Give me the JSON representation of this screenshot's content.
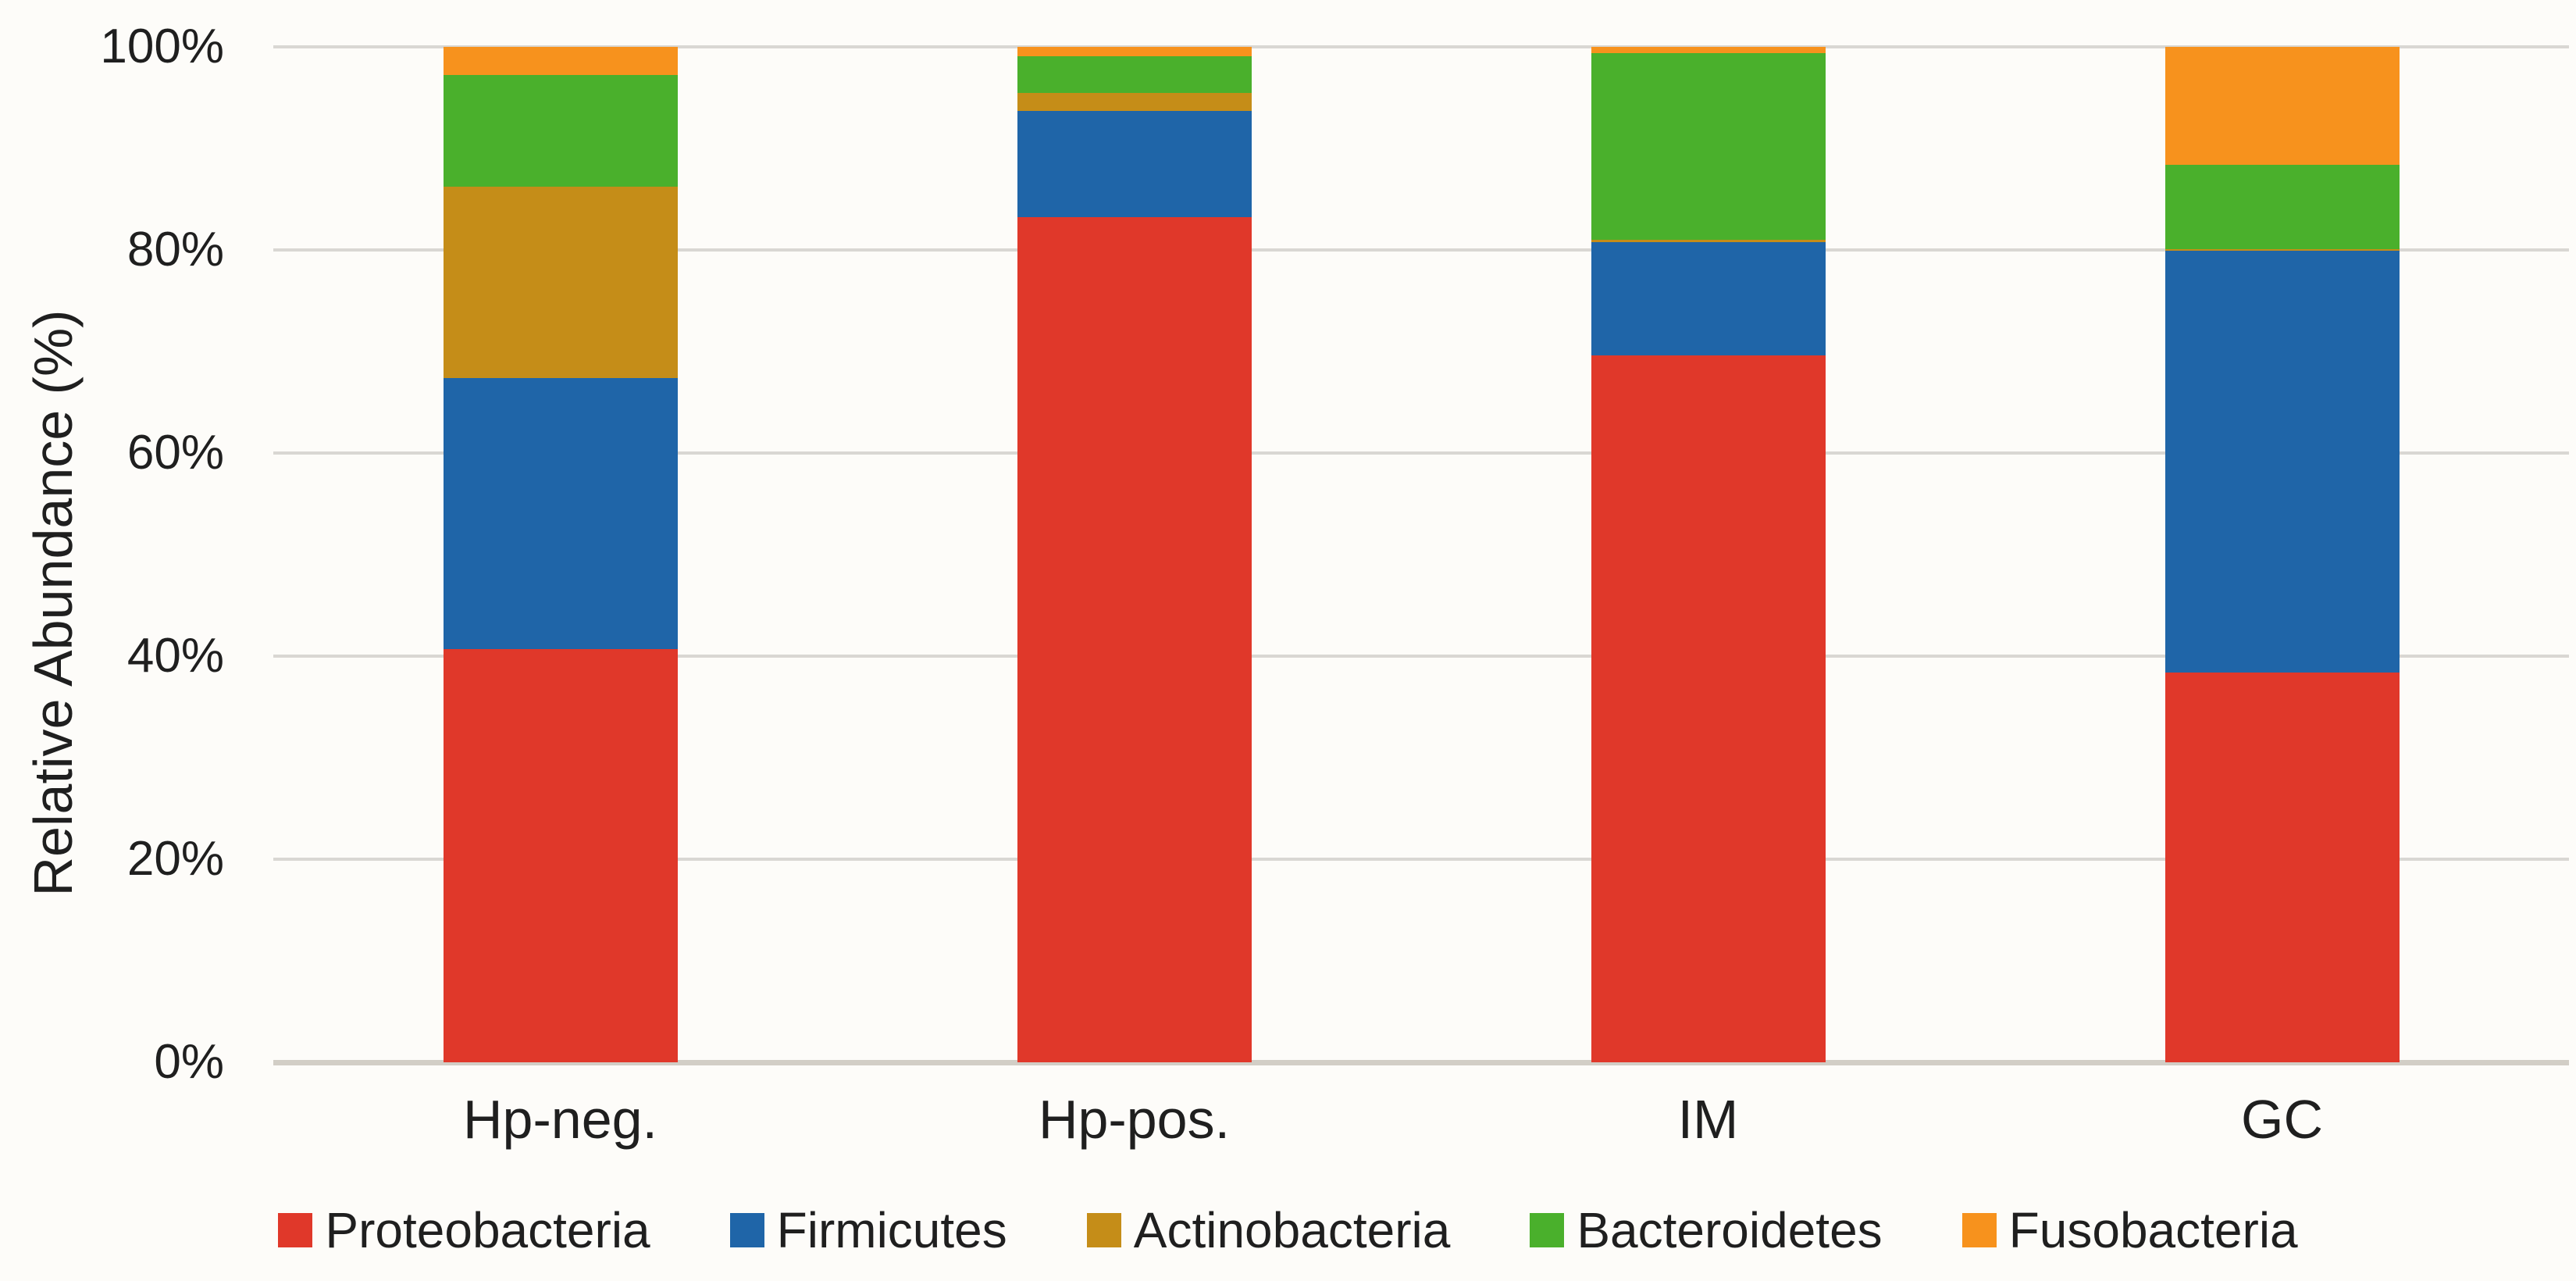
{
  "chart_data": {
    "type": "bar",
    "stacked": true,
    "orientation": "vertical",
    "title": "",
    "xlabel": "",
    "ylabel": "Relative Abundance (%)",
    "ylim": [
      0,
      100
    ],
    "yticks": [
      {
        "value": 0,
        "label": "0%"
      },
      {
        "value": 20,
        "label": "20%"
      },
      {
        "value": 40,
        "label": "40%"
      },
      {
        "value": 60,
        "label": "60%"
      },
      {
        "value": 80,
        "label": "80%"
      },
      {
        "value": 100,
        "label": "100%"
      }
    ],
    "grid": true,
    "legend_position": "bottom",
    "categories": [
      "Hp-neg.",
      "Hp-pos.",
      "IM",
      "GC"
    ],
    "series": [
      {
        "name": "Proteobacteria",
        "color": "#e0382a",
        "values": [
          40.7,
          83.2,
          69.6,
          38.4
        ]
      },
      {
        "name": "Firmicutes",
        "color": "#1f65a8",
        "values": [
          26.7,
          10.5,
          11.2,
          41.5
        ]
      },
      {
        "name": "Actinobacteria",
        "color": "#c58d18",
        "values": [
          18.8,
          1.8,
          0.2,
          0.2
        ]
      },
      {
        "name": "Bacteroidetes",
        "color": "#4ab02c",
        "values": [
          11.0,
          3.6,
          18.4,
          8.3
        ]
      },
      {
        "name": "Fusobacteria",
        "color": "#f7921d",
        "values": [
          2.8,
          0.9,
          0.6,
          11.6
        ]
      }
    ]
  },
  "colors": {
    "background": "#fdfcf9",
    "gridline": "#d9d7d3",
    "x_axis_line": "#d2cec6",
    "text": "#1f1f1f"
  }
}
